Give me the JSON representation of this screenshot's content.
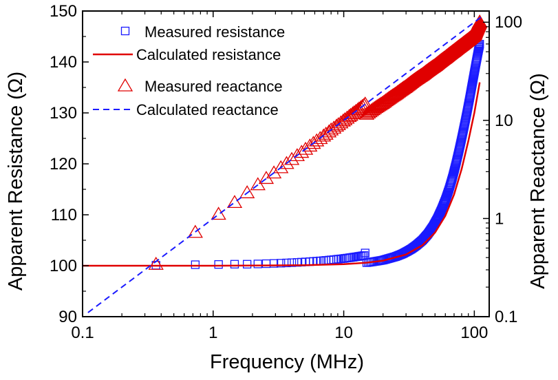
{
  "chart_data": {
    "type": "scatter",
    "xlabel": "Frequency (MHz)",
    "ylabel_left": "Apparent Resistance (Ω)",
    "ylabel_right": "Apparent Reactance (Ω)",
    "x_scale": "log",
    "xlim": [
      0.1,
      130
    ],
    "ylim_left": [
      90,
      150
    ],
    "ylim_right": [
      0.1,
      130
    ],
    "y_right_scale": "log",
    "x_ticks": [
      0.1,
      1,
      10,
      100
    ],
    "x_tick_labels": [
      "0.1",
      "1",
      "10",
      "100"
    ],
    "y_left_ticks": [
      90,
      100,
      110,
      120,
      130,
      140,
      150
    ],
    "y_left_tick_labels": [
      "90",
      "100",
      "110",
      "120",
      "130",
      "140",
      "150"
    ],
    "y_right_ticks": [
      0.1,
      1,
      10,
      100
    ],
    "y_right_tick_labels": [
      "0.1",
      "1",
      "10",
      "100"
    ],
    "grid": false,
    "legend": {
      "placement": "top-left",
      "entries": [
        {
          "label": "Measured resistance",
          "marker": "square",
          "color": "#1a1aff"
        },
        {
          "label": "Calculated resistance",
          "marker": "solid-line",
          "color": "#e00000"
        },
        {
          "label": "Measured reactance",
          "marker": "triangle",
          "color": "#e00000"
        },
        {
          "label": "Calculated reactance",
          "marker": "dashed-line",
          "color": "#1a1aff"
        }
      ]
    },
    "series": [
      {
        "name": "Measured resistance",
        "axis": "left",
        "style": "square-markers",
        "color": "#1a1aff",
        "x": [
          0.365,
          0.73,
          1.1,
          1.46,
          1.82,
          2.2,
          2.55,
          2.92,
          3.3,
          3.65,
          4.0,
          4.4,
          4.75,
          5.1,
          5.5,
          5.85,
          6.2,
          6.6,
          7.0,
          7.3,
          7.7,
          8.0,
          8.4,
          8.8,
          9.1,
          9.5,
          9.9,
          10.2,
          10.6,
          11.0,
          11.3,
          11.7,
          12.0,
          12.4,
          12.8,
          13.1,
          13.5,
          13.9,
          14.3,
          14.6
        ],
        "y": [
          100.1,
          100.2,
          100.25,
          100.3,
          100.3,
          100.35,
          100.4,
          100.45,
          100.5,
          100.55,
          100.6,
          100.65,
          100.7,
          100.75,
          100.8,
          100.85,
          100.9,
          100.95,
          101.0,
          101.05,
          101.1,
          101.15,
          101.2,
          101.25,
          101.3,
          101.35,
          101.4,
          101.45,
          101.5,
          101.55,
          101.6,
          101.65,
          101.7,
          101.75,
          101.8,
          101.85,
          101.9,
          101.95,
          102.0,
          102.5
        ],
        "x_dense": [
          15,
          16,
          18,
          20,
          22,
          25,
          28,
          30,
          33,
          36,
          40,
          44,
          48,
          52,
          56,
          60,
          64,
          68,
          72,
          76,
          80,
          84,
          88,
          92,
          96,
          100,
          104,
          108,
          110
        ],
        "y_dense": [
          100.6,
          100.7,
          100.9,
          101.1,
          101.4,
          101.8,
          102.3,
          102.7,
          103.3,
          104.0,
          105.0,
          106.2,
          107.6,
          109.2,
          111.0,
          112.9,
          115.0,
          117.3,
          119.8,
          122.4,
          125.0,
          127.6,
          130.2,
          132.8,
          135.4,
          137.9,
          140.3,
          142.5,
          143.5
        ]
      },
      {
        "name": "Calculated resistance",
        "axis": "left",
        "style": "solid-line",
        "color": "#e00000",
        "x": [
          0.1,
          1,
          5,
          10,
          15,
          20,
          30,
          40,
          50,
          60,
          70,
          80,
          90,
          100,
          110
        ],
        "y": [
          100.0,
          100.0,
          100.1,
          100.3,
          100.6,
          101.0,
          102.2,
          104.0,
          106.5,
          109.8,
          114.0,
          119.0,
          124.5,
          130.0,
          136.0
        ]
      },
      {
        "name": "Measured reactance",
        "axis": "right",
        "style": "triangle-markers",
        "color": "#e00000",
        "x": [
          0.365,
          0.73,
          1.1,
          1.46,
          1.82,
          2.2,
          2.55,
          2.92,
          3.3,
          3.65,
          4.0,
          4.4,
          4.75,
          5.1,
          5.5,
          5.85,
          6.2,
          6.6,
          7.0,
          7.3,
          7.7,
          8.0,
          8.4,
          8.8,
          9.1,
          9.5,
          9.9,
          10.2,
          10.6,
          11.0,
          11.3,
          11.7,
          12.0,
          12.4,
          12.8,
          13.1,
          13.5,
          13.9,
          14.3,
          14.6
        ],
        "y": [
          0.34,
          0.72,
          1.1,
          1.45,
          1.82,
          2.2,
          2.55,
          2.9,
          3.28,
          3.62,
          3.98,
          4.35,
          4.7,
          5.05,
          5.45,
          5.8,
          6.15,
          6.5,
          6.9,
          7.2,
          7.6,
          7.95,
          8.3,
          8.7,
          9.0,
          9.4,
          9.8,
          10.1,
          10.5,
          10.9,
          11.2,
          11.6,
          11.9,
          12.3,
          12.7,
          13.0,
          13.4,
          13.8,
          14.2,
          14.6
        ],
        "x_dense": [
          15,
          20,
          25,
          30,
          40,
          50,
          60,
          70,
          80,
          90,
          100,
          110
        ],
        "y_dense": [
          11.5,
          15.0,
          18.5,
          22.0,
          29.0,
          36.0,
          43.5,
          51.0,
          58.5,
          66.0,
          74.0,
          100.0
        ]
      },
      {
        "name": "Calculated reactance",
        "axis": "right",
        "style": "dashed-line",
        "color": "#1a1aff",
        "x": [
          0.11,
          115
        ],
        "y": [
          0.11,
          115
        ]
      }
    ]
  }
}
